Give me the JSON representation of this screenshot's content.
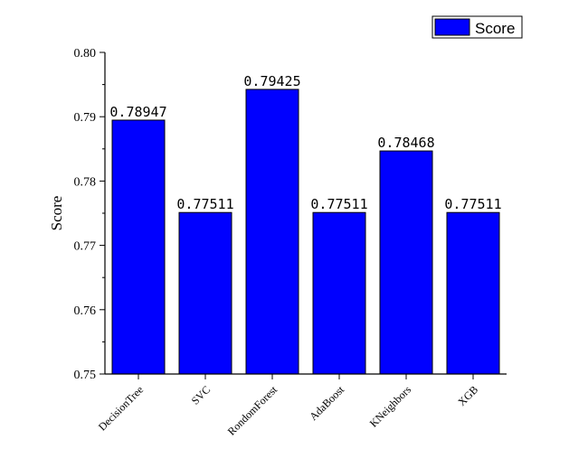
{
  "chart_data": {
    "type": "bar",
    "title": "",
    "xlabel": "",
    "ylabel": "Score",
    "categories": [
      "DecisionTree",
      "SVC",
      "RondomForest",
      "AdaBoost",
      "KNeighbors",
      "XGB"
    ],
    "series": [
      {
        "name": "Score",
        "values": [
          0.78947,
          0.77511,
          0.79425,
          0.77511,
          0.78468,
          0.77511
        ],
        "data_labels": [
          "0.78947",
          "0.77511",
          "0.79425",
          "0.77511",
          "0.78468",
          "0.77511"
        ]
      }
    ],
    "ylim": [
      0.75,
      0.8
    ],
    "yticks": [
      "0.75",
      "0.76",
      "0.77",
      "0.78",
      "0.79",
      "0.80"
    ],
    "grid": false,
    "legend": "top-right",
    "colors": {
      "bar": "#0000ff",
      "bar_edge": "#000000"
    }
  }
}
